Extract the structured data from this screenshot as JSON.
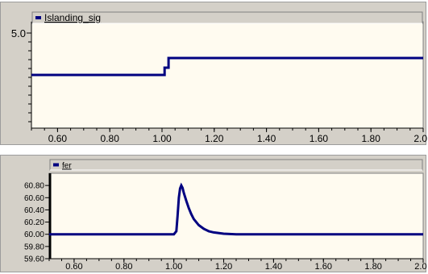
{
  "colors": {
    "panel_bg": "#d4d0c8",
    "plot_bg": "#fffbf0",
    "series": "#000080",
    "grid": "#c8c8c8"
  },
  "chart_data": [
    {
      "type": "line",
      "title": "",
      "xlabel": "",
      "ylabel": "",
      "xlim": [
        0.5,
        2.0
      ],
      "ylim": [
        2.9,
        5.1
      ],
      "y_tick_label": "5.0",
      "x_ticks": [
        0.6,
        0.8,
        1.0,
        1.2,
        1.4,
        1.6,
        1.8,
        2.0
      ],
      "x_tick_labels": [
        "0.60",
        "0.80",
        "1.00",
        "1.20",
        "1.40",
        "1.60",
        "1.80",
        "2.00"
      ],
      "legend": "top-left",
      "grid": false,
      "series": [
        {
          "name": "Islanding_sig",
          "color": "#000080",
          "x": [
            0.5,
            1.01,
            1.01,
            1.025,
            1.025,
            2.0
          ],
          "y": [
            4.0,
            4.0,
            4.15,
            4.15,
            4.35,
            4.35
          ]
        }
      ]
    },
    {
      "type": "line",
      "title": "",
      "xlabel": "",
      "ylabel": "",
      "xlim": [
        0.5,
        2.0
      ],
      "ylim": [
        59.6,
        61.0
      ],
      "y_ticks": [
        60.8,
        60.6,
        60.4,
        60.2,
        60.0,
        59.8,
        59.6
      ],
      "y_tick_labels": [
        "60.80",
        "60.60",
        "60.40",
        "60.20",
        "60.00",
        "59.80",
        "59.60"
      ],
      "x_ticks": [
        0.6,
        0.8,
        1.0,
        1.2,
        1.4,
        1.6,
        1.8,
        2.0
      ],
      "x_tick_labels": [
        "0.60",
        "0.80",
        "1.00",
        "1.20",
        "1.40",
        "1.60",
        "1.80",
        "2.00"
      ],
      "legend": "top-left",
      "grid": false,
      "series": [
        {
          "name": "fer",
          "color": "#000080",
          "x": [
            0.5,
            1.0,
            1.01,
            1.015,
            1.02,
            1.025,
            1.03,
            1.035,
            1.04,
            1.05,
            1.06,
            1.07,
            1.08,
            1.1,
            1.12,
            1.14,
            1.16,
            1.2,
            1.25,
            1.3,
            2.0
          ],
          "y": [
            60.0,
            60.0,
            60.05,
            60.3,
            60.6,
            60.75,
            60.8,
            60.76,
            60.68,
            60.55,
            60.43,
            60.33,
            60.25,
            60.15,
            60.09,
            60.05,
            60.03,
            60.01,
            60.0,
            60.0,
            60.0
          ]
        }
      ]
    }
  ]
}
